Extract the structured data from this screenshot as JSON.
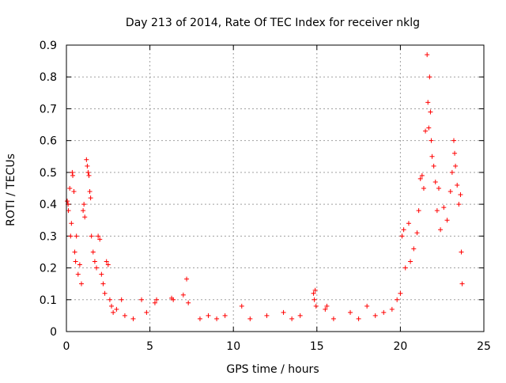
{
  "chart_data": {
    "type": "scatter",
    "title": "Day 213 of 2014, Rate Of TEC Index for receiver nklg",
    "xlabel": "GPS time / hours",
    "ylabel": "ROTI / TECUs",
    "xlim": [
      0,
      25
    ],
    "ylim": [
      0,
      0.9
    ],
    "x_ticks": [
      0,
      5,
      10,
      15,
      20,
      25
    ],
    "y_ticks": [
      0,
      0.1,
      0.2,
      0.3,
      0.4,
      0.5,
      0.6,
      0.7,
      0.8,
      0.9
    ],
    "x_tick_labels": [
      "0",
      "5",
      "10",
      "15",
      "20",
      "25"
    ],
    "y_tick_labels": [
      "0",
      "0.1",
      "0.2",
      "0.3",
      "0.4",
      "0.5",
      "0.6",
      "0.7",
      "0.8",
      "0.9"
    ],
    "grid": true,
    "marker": "+",
    "color": "#ff0000",
    "series": [
      {
        "values": [
          [
            0.05,
            0.41
          ],
          [
            0.1,
            0.4
          ],
          [
            0.12,
            0.38
          ],
          [
            0.2,
            0.45
          ],
          [
            0.25,
            0.3
          ],
          [
            0.3,
            0.34
          ],
          [
            0.35,
            0.5
          ],
          [
            0.38,
            0.49
          ],
          [
            0.45,
            0.44
          ],
          [
            0.5,
            0.25
          ],
          [
            0.55,
            0.22
          ],
          [
            0.6,
            0.3
          ],
          [
            0.7,
            0.18
          ],
          [
            0.8,
            0.21
          ],
          [
            0.9,
            0.15
          ],
          [
            1.0,
            0.38
          ],
          [
            1.05,
            0.4
          ],
          [
            1.1,
            0.36
          ],
          [
            1.2,
            0.54
          ],
          [
            1.25,
            0.52
          ],
          [
            1.3,
            0.5
          ],
          [
            1.35,
            0.49
          ],
          [
            1.4,
            0.44
          ],
          [
            1.45,
            0.42
          ],
          [
            1.5,
            0.3
          ],
          [
            1.6,
            0.25
          ],
          [
            1.7,
            0.22
          ],
          [
            1.8,
            0.2
          ],
          [
            1.9,
            0.3
          ],
          [
            2.0,
            0.29
          ],
          [
            2.1,
            0.18
          ],
          [
            2.2,
            0.15
          ],
          [
            2.3,
            0.12
          ],
          [
            2.4,
            0.22
          ],
          [
            2.5,
            0.21
          ],
          [
            2.6,
            0.1
          ],
          [
            2.7,
            0.08
          ],
          [
            2.8,
            0.06
          ],
          [
            3.0,
            0.07
          ],
          [
            3.3,
            0.1
          ],
          [
            3.5,
            0.05
          ],
          [
            4.0,
            0.04
          ],
          [
            4.5,
            0.1
          ],
          [
            4.8,
            0.06
          ],
          [
            5.3,
            0.09
          ],
          [
            5.4,
            0.1
          ],
          [
            6.3,
            0.105
          ],
          [
            6.4,
            0.1
          ],
          [
            7.0,
            0.115
          ],
          [
            7.2,
            0.165
          ],
          [
            7.3,
            0.09
          ],
          [
            8.0,
            0.04
          ],
          [
            8.5,
            0.05
          ],
          [
            9.0,
            0.04
          ],
          [
            9.5,
            0.05
          ],
          [
            10.5,
            0.08
          ],
          [
            11.0,
            0.04
          ],
          [
            12.0,
            0.05
          ],
          [
            13.0,
            0.06
          ],
          [
            13.5,
            0.04
          ],
          [
            14.0,
            0.05
          ],
          [
            14.8,
            0.12
          ],
          [
            14.85,
            0.1
          ],
          [
            14.9,
            0.13
          ],
          [
            14.95,
            0.08
          ],
          [
            15.5,
            0.07
          ],
          [
            15.6,
            0.08
          ],
          [
            16.0,
            0.04
          ],
          [
            17.0,
            0.06
          ],
          [
            17.5,
            0.04
          ],
          [
            18.0,
            0.08
          ],
          [
            18.5,
            0.05
          ],
          [
            19.0,
            0.06
          ],
          [
            19.5,
            0.07
          ],
          [
            19.8,
            0.1
          ],
          [
            20.0,
            0.12
          ],
          [
            20.1,
            0.3
          ],
          [
            20.2,
            0.32
          ],
          [
            20.3,
            0.2
          ],
          [
            20.5,
            0.34
          ],
          [
            20.6,
            0.22
          ],
          [
            20.8,
            0.26
          ],
          [
            21.0,
            0.31
          ],
          [
            21.1,
            0.38
          ],
          [
            21.2,
            0.48
          ],
          [
            21.3,
            0.49
          ],
          [
            21.4,
            0.45
          ],
          [
            21.5,
            0.63
          ],
          [
            21.6,
            0.87
          ],
          [
            21.65,
            0.72
          ],
          [
            21.7,
            0.64
          ],
          [
            21.75,
            0.8
          ],
          [
            21.8,
            0.69
          ],
          [
            21.85,
            0.6
          ],
          [
            21.9,
            0.55
          ],
          [
            22.0,
            0.52
          ],
          [
            22.1,
            0.47
          ],
          [
            22.2,
            0.38
          ],
          [
            22.3,
            0.45
          ],
          [
            22.4,
            0.32
          ],
          [
            22.6,
            0.39
          ],
          [
            22.8,
            0.35
          ],
          [
            23.0,
            0.44
          ],
          [
            23.1,
            0.5
          ],
          [
            23.2,
            0.6
          ],
          [
            23.25,
            0.56
          ],
          [
            23.3,
            0.52
          ],
          [
            23.4,
            0.46
          ],
          [
            23.5,
            0.4
          ],
          [
            23.6,
            0.43
          ],
          [
            23.65,
            0.25
          ],
          [
            23.7,
            0.15
          ]
        ]
      }
    ]
  }
}
